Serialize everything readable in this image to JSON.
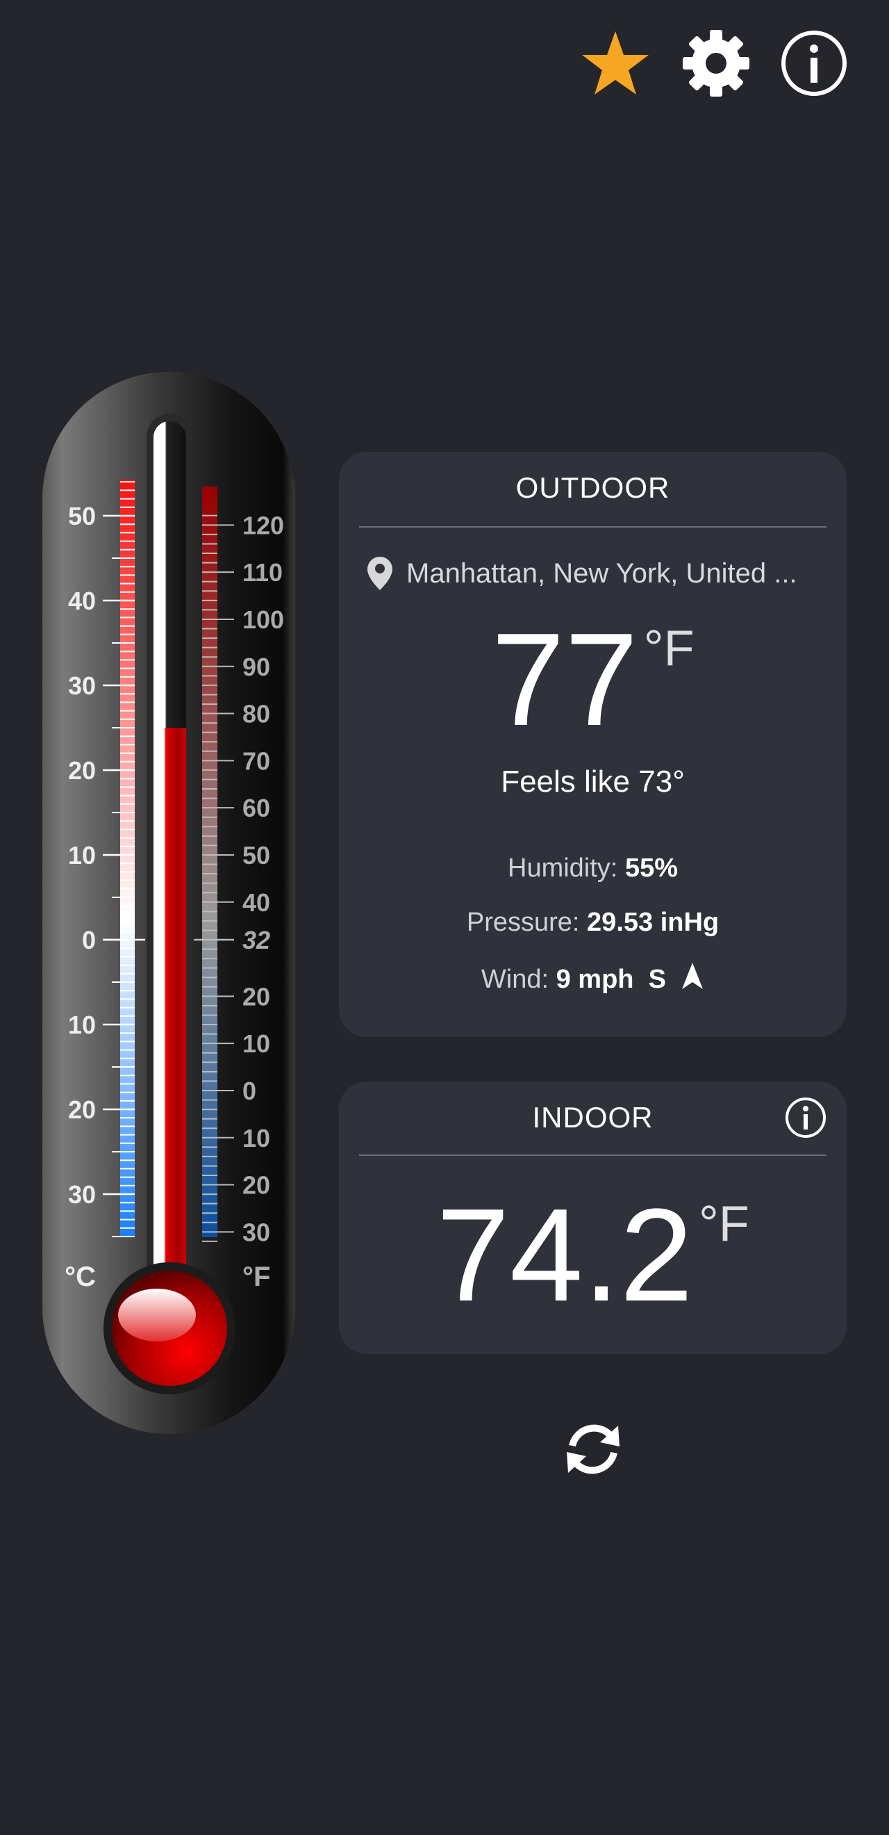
{
  "toolbar": {
    "icons": [
      "star-icon",
      "gear-icon",
      "info-icon"
    ],
    "star_color": "#f5a623"
  },
  "thermometer": {
    "celsius_unit": "°C",
    "fahrenheit_unit": "°F",
    "celsius_labels": [
      "50",
      "40",
      "30",
      "20",
      "10",
      "0",
      "10",
      "20",
      "30"
    ],
    "celsius_values": [
      50,
      40,
      30,
      20,
      10,
      0,
      -10,
      -20,
      -30
    ],
    "fahrenheit_labels": [
      "120",
      "110",
      "100",
      "90",
      "80",
      "70",
      "60",
      "50",
      "40",
      "32",
      "20",
      "10",
      "0",
      "10",
      "20",
      "30"
    ],
    "fahrenheit_values": [
      120,
      110,
      100,
      90,
      80,
      70,
      60,
      50,
      40,
      32,
      20,
      10,
      0,
      -10,
      -20,
      -30
    ],
    "reading_celsius": 25,
    "mercury_color": "#d40000"
  },
  "outdoor": {
    "title": "OUTDOOR",
    "location": "Manhattan, New York, United ...",
    "temperature": "77",
    "unit": "°F",
    "feels_like": "Feels like 73°",
    "humidity_label": "Humidity:",
    "humidity_value": "55%",
    "pressure_label": "Pressure:",
    "pressure_value": "29.53 inHg",
    "wind_label": "Wind:",
    "wind_value": "9 mph",
    "wind_direction": "S"
  },
  "indoor": {
    "title": "INDOOR",
    "temperature": "74.2",
    "unit": "°F"
  },
  "refresh_icon": "refresh-icon"
}
